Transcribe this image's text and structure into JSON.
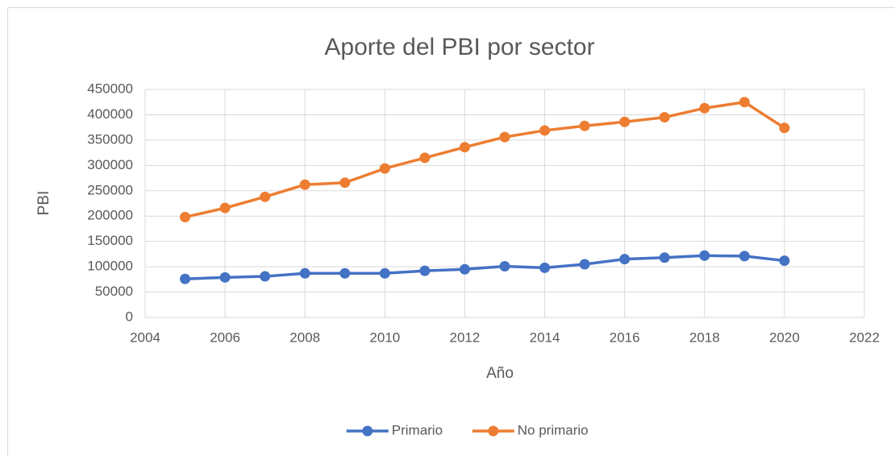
{
  "chart_data": {
    "type": "line",
    "title": "Aporte del PBI por sector",
    "x_label": "Año",
    "y_label": "PBI",
    "x": [
      2005,
      2006,
      2007,
      2008,
      2009,
      2010,
      2011,
      2012,
      2013,
      2014,
      2015,
      2016,
      2017,
      2018,
      2019,
      2020
    ],
    "series": [
      {
        "name": "Primario",
        "color": "#4472c4",
        "values": [
          76000,
          79000,
          81000,
          87000,
          87000,
          87000,
          92000,
          95000,
          101000,
          98000,
          105000,
          115000,
          118000,
          122000,
          121000,
          112000
        ]
      },
      {
        "name": "No primario",
        "color": "#ed7d31",
        "values": [
          198000,
          216000,
          238000,
          262000,
          266000,
          294000,
          315000,
          336000,
          356000,
          369000,
          378000,
          386000,
          395000,
          413000,
          425000,
          374000
        ]
      }
    ],
    "xlim": [
      2004,
      2022
    ],
    "xticks": [
      2004,
      2006,
      2008,
      2010,
      2012,
      2014,
      2016,
      2018,
      2020,
      2022
    ],
    "ylim": [
      0,
      450000
    ],
    "yticks": [
      0,
      50000,
      100000,
      150000,
      200000,
      250000,
      300000,
      350000,
      400000,
      450000
    ],
    "grid": true,
    "legend": "bottom"
  }
}
